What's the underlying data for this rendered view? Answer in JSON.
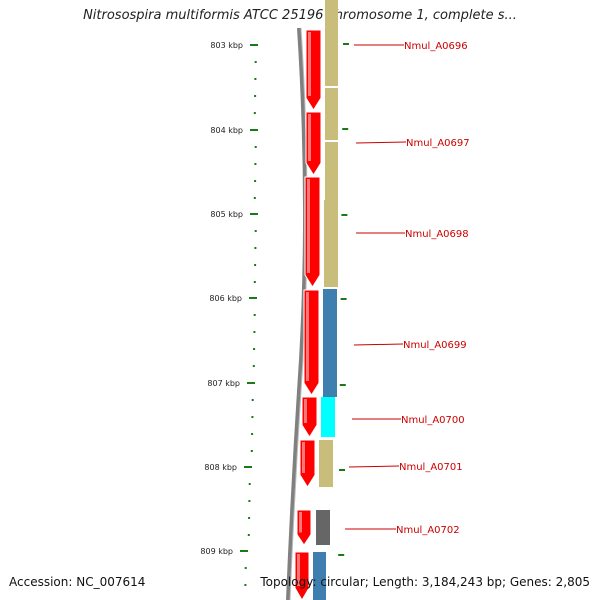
{
  "title": "Nitrosospira multiformis ATCC 25196 chromosome 1, complete s...",
  "footer": {
    "accession": "Accession: NC_007614",
    "summary": "Topology: circular; Length: 3,184,243 bp; Genes: 2,805"
  },
  "scale": {
    "ticks": [
      "803 kbp",
      "804 kbp",
      "805 kbp",
      "806 kbp",
      "807 kbp",
      "808 kbp",
      "809 kbp"
    ]
  },
  "genes": [
    {
      "name": "Nmul_A0696",
      "color": "#c8bd7a"
    },
    {
      "name": "Nmul_A0697",
      "color": "#c8bd7a"
    },
    {
      "name": "Nmul_A0698",
      "color": "#c8bd7a"
    },
    {
      "name": "Nmul_A0699",
      "color": "#3f7fb0"
    },
    {
      "name": "Nmul_A0700",
      "color": "#00ffff"
    },
    {
      "name": "Nmul_A0701",
      "color": "#c8bd7a"
    },
    {
      "name": "Nmul_A0702",
      "color": "#666666"
    }
  ],
  "colors": {
    "forward_strand": "#ff0000",
    "backbone": "#808080",
    "tick": "#1a7a1a",
    "label": "#cc0000"
  }
}
